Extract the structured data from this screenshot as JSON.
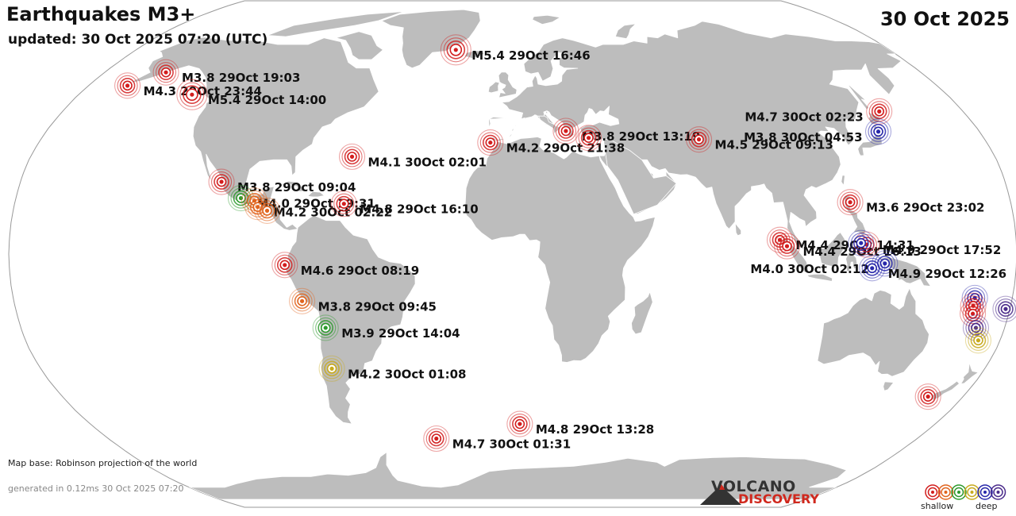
{
  "header": {
    "title": "Earthquakes M3+",
    "updated": "updated: 30 Oct 2025 07:20 (UTC)",
    "date": "30 Oct 2025"
  },
  "footer": {
    "map_base": "Map base: Robinson projection of the world",
    "generated": "generated in 0.12ms 30 Oct 2025 07:20"
  },
  "brand": {
    "line1": "VOLCANO",
    "line2": "DISCOVERY"
  },
  "legend": {
    "shallow_label": "shallow",
    "deep_label": "deep",
    "depth_colors": [
      "#d21e1e",
      "#e0641e",
      "#2d9a2d",
      "#c8aa1e",
      "#2828aa",
      "#4a2a8a"
    ]
  },
  "colors": {
    "ocean": "#ffffff",
    "land": "#bdbdbd",
    "border": "#ffffff"
  },
  "quakes": [
    {
      "id": "q1",
      "label": "M5.4 29Oct 16:46",
      "depth_color": "#d21e1e",
      "lon": -27.2,
      "lat": 66.5
    },
    {
      "id": "q2",
      "label": "M3.8 29Oct 19:03",
      "depth_color": "#d21e1e",
      "lon": -153.0,
      "lat": 58.5
    },
    {
      "id": "q3",
      "label": "M4.3 29Oct 23:44",
      "depth_color": "#d21e1e",
      "lon": -163.5,
      "lat": 54.0
    },
    {
      "id": "q4",
      "label": "M5.4 29Oct 14:00",
      "depth_color": "#d21e1e",
      "lon": -133.0,
      "lat": 51.0
    },
    {
      "id": "q5",
      "label": "M3.8 29Oct 13:19",
      "depth_color": "#d21e1e",
      "lon": 20.5,
      "lat": 39.2
    },
    {
      "id": "q6",
      "label": "M4.2 29Oct 21:38",
      "depth_color": "#d21e1e",
      "lon": -8.5,
      "lat": 35.5
    },
    {
      "id": "q7",
      "label": "",
      "depth_color": "#d21e1e",
      "lon": 29.0,
      "lat": 37.0
    },
    {
      "id": "q8",
      "label": "M4.5 29Oct 09:13",
      "depth_color": "#d21e1e",
      "lon": 71.0,
      "lat": 36.5
    },
    {
      "id": "q9",
      "label": "M4.7 30Oct 02:23",
      "depth_color": "#d21e1e",
      "lon": 146.5,
      "lat": 45.5
    },
    {
      "id": "q10",
      "label": "M3.8 30Oct 04:53",
      "depth_color": "#2828aa",
      "lon": 141.0,
      "lat": 39.0
    },
    {
      "id": "q11",
      "label": "M4.1 30Oct 02:01",
      "depth_color": "#d21e1e",
      "lon": -60.0,
      "lat": 31.0
    },
    {
      "id": "q12",
      "label": "M3.8 29Oct 09:04",
      "depth_color": "#d21e1e",
      "lon": -106.5,
      "lat": 23.0
    },
    {
      "id": "q13",
      "label": "M4.0 29Oct 19:31",
      "depth_color": "#2d9a2d",
      "lon": -98.5,
      "lat": 17.8
    },
    {
      "id": "q14",
      "label": "",
      "depth_color": "#e0641e",
      "lon": -93.5,
      "lat": 17.0
    },
    {
      "id": "q15",
      "label": "M4.2 30Oct 02:22",
      "depth_color": "#e0641e",
      "lon": -92.0,
      "lat": 15.0
    },
    {
      "id": "q16",
      "label": "",
      "depth_color": "#e0641e",
      "lon": -88.5,
      "lat": 13.8
    },
    {
      "id": "q17",
      "label": "M4.8 29Oct 16:10",
      "depth_color": "#d21e1e",
      "lon": -61.0,
      "lat": 16.0
    },
    {
      "id": "q18",
      "label": "M3.6 29Oct 23:02",
      "depth_color": "#d21e1e",
      "lon": 122.0,
      "lat": 16.5
    },
    {
      "id": "q19",
      "label": "M4.4 29Oct 14:31",
      "depth_color": "#d21e1e",
      "lon": 95.5,
      "lat": 4.5
    },
    {
      "id": "q20",
      "label": "M4.4 29Oct 16:13",
      "depth_color": "#d21e1e",
      "lon": 98.0,
      "lat": 2.5
    },
    {
      "id": "q21",
      "label": "M4.9 29Oct 17:52",
      "depth_color": "#d21e1e",
      "lon": 126.5,
      "lat": 3.0
    },
    {
      "id": "q22",
      "label": "",
      "depth_color": "#2828aa",
      "lon": 124.5,
      "lat": 3.5
    },
    {
      "id": "q23",
      "label": "M4.0 30Oct 02:12",
      "depth_color": "#2828aa",
      "lon": 133.0,
      "lat": -3.0
    },
    {
      "id": "q24",
      "label": "M4.9 29Oct 12:26",
      "depth_color": "#2828aa",
      "lon": 128.5,
      "lat": -4.5
    },
    {
      "id": "q25",
      "label": "M4.6 29Oct 08:19",
      "depth_color": "#d21e1e",
      "lon": -81.5,
      "lat": -3.5
    },
    {
      "id": "q26",
      "label": "M3.8 29Oct 09:45",
      "depth_color": "#e0641e",
      "lon": -76.0,
      "lat": -15.0
    },
    {
      "id": "q27",
      "label": "M3.9 29Oct 14:04",
      "depth_color": "#2d9a2d",
      "lon": -68.5,
      "lat": -23.5
    },
    {
      "id": "q28",
      "label": "M4.2 30Oct 01:08",
      "depth_color": "#c8aa1e",
      "lon": -69.0,
      "lat": -36.5
    },
    {
      "id": "q29",
      "label": "M4.7 30Oct 01:31",
      "depth_color": "#d21e1e",
      "lon": -34.0,
      "lat": -59.5
    },
    {
      "id": "q30",
      "label": "M4.8 29Oct 13:28",
      "depth_color": "#d21e1e",
      "lon": 3.0,
      "lat": -54.5
    },
    {
      "id": "q31",
      "label": "",
      "depth_color": "#2828aa",
      "lon": 166.5,
      "lat": -14.0
    },
    {
      "id": "q32",
      "label": "",
      "depth_color": "#d21e1e",
      "lon": 166.5,
      "lat": -16.5
    },
    {
      "id": "q33",
      "label": "",
      "depth_color": "#d21e1e",
      "lon": 167.0,
      "lat": -19.0
    },
    {
      "id": "q34",
      "label": "",
      "depth_color": "#4a2a8a",
      "lon": 178.5,
      "lat": -17.5
    },
    {
      "id": "q35",
      "label": "",
      "depth_color": "#4a2a8a",
      "lon": 169.5,
      "lat": -23.5
    },
    {
      "id": "q36",
      "label": "",
      "depth_color": "#c8aa1e",
      "lon": 172.0,
      "lat": -27.5
    },
    {
      "id": "q37",
      "label": "",
      "depth_color": "#d21e1e",
      "lon": 166.0,
      "lat": -45.5
    }
  ]
}
